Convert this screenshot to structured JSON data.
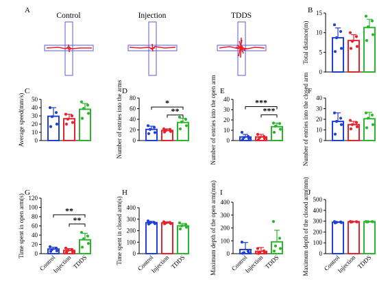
{
  "figure": {
    "panel_letters": [
      "A",
      "B",
      "C",
      "D",
      "E",
      "F",
      "G",
      "H",
      "I",
      "J"
    ],
    "trajectory_titles": [
      "Control",
      "Injection",
      "TDDS"
    ]
  },
  "colors": {
    "control": "#1f3fd6",
    "injection": "#e8212b",
    "tdds": "#2bb52b",
    "track": "#e8212b",
    "maze": "#4a4ad6"
  },
  "chart_data": [
    {
      "panel": "B",
      "type": "bar",
      "categories": [
        "Control",
        "Injection",
        "TDDS"
      ],
      "values": [
        8.7,
        8.0,
        11.3
      ],
      "errors": [
        2.5,
        1.5,
        2.1
      ],
      "points": [
        [
          12.0,
          10.3,
          8.7,
          6.0,
          5.2
        ],
        [
          10.0,
          9.0,
          7.8,
          6.5,
          6.0
        ],
        [
          14.2,
          13.0,
          11.5,
          9.5,
          8.0
        ]
      ],
      "ylabel": "Total distance(m)",
      "ylim": [
        0,
        15
      ],
      "ticks": [
        0,
        5,
        10,
        15
      ],
      "show_xlabels": false,
      "significance": []
    },
    {
      "panel": "C",
      "type": "bar",
      "categories": [
        "Control",
        "Injection",
        "TDDS"
      ],
      "values": [
        29.5,
        26.5,
        38.0
      ],
      "errors": [
        10.5,
        5.5,
        7.0
      ],
      "points": [
        [
          40.0,
          34.0,
          29.0,
          20.0,
          17.0
        ],
        [
          32.0,
          30.0,
          26.0,
          22.0,
          20.0
        ],
        [
          47.0,
          43.0,
          39.0,
          33.0,
          27.0
        ]
      ],
      "ylabel": "Average speed(mm/s)",
      "ylim": [
        0,
        50
      ],
      "ticks": [
        0,
        10,
        20,
        30,
        40,
        50
      ],
      "show_xlabels": false,
      "significance": []
    },
    {
      "panel": "D",
      "type": "bar",
      "categories": [
        "Control",
        "Injection",
        "TDDS"
      ],
      "values": [
        21.0,
        19.0,
        34.0
      ],
      "errors": [
        6.0,
        3.0,
        8.0
      ],
      "points": [
        [
          28.0,
          25.0,
          21.0,
          15.0,
          13.0
        ],
        [
          22.0,
          21.0,
          19.0,
          17.0,
          16.0
        ],
        [
          44.0,
          40.0,
          35.0,
          28.0,
          22.0
        ]
      ],
      "ylabel": "Number of entries into the arms",
      "ylim": [
        0,
        80
      ],
      "ticks": [
        0,
        20,
        40,
        60,
        80
      ],
      "show_xlabels": false,
      "significance": [
        {
          "from": 0,
          "to": 2,
          "label": "*",
          "y": 63
        },
        {
          "from": 1,
          "to": 2,
          "label": "**",
          "y": 48
        }
      ]
    },
    {
      "panel": "E",
      "type": "bar",
      "categories": [
        "Control",
        "Injection",
        "TDDS"
      ],
      "values": [
        3.5,
        3.5,
        13.5
      ],
      "errors": [
        2.5,
        2.5,
        3.5
      ],
      "points": [
        [
          8.0,
          4.0,
          3.0,
          2.0,
          1.0
        ],
        [
          6.0,
          4.0,
          3.0,
          2.0,
          1.0
        ],
        [
          17.0,
          16.5,
          14.0,
          11.0,
          8.0
        ]
      ],
      "ylabel": "Number of entries into the open arm",
      "ylim": [
        0,
        40
      ],
      "ticks": [
        0,
        10,
        20,
        30,
        40
      ],
      "show_xlabels": false,
      "significance": [
        {
          "from": 0,
          "to": 2,
          "label": "***",
          "y": 33
        },
        {
          "from": 1,
          "to": 2,
          "label": "***",
          "y": 25
        }
      ]
    },
    {
      "panel": "F",
      "type": "bar",
      "categories": [
        "Control",
        "Injection",
        "TDDS"
      ],
      "values": [
        18.0,
        15.0,
        20.5
      ],
      "errors": [
        8.0,
        3.0,
        6.0
      ],
      "points": [
        [
          26.0,
          21.0,
          18.0,
          15.0,
          6.0
        ],
        [
          19.0,
          17.0,
          15.0,
          13.0,
          11.0
        ],
        [
          26.0,
          24.0,
          21.0,
          15.0,
          12.0
        ]
      ],
      "ylabel": "Number of entries into the closed arm",
      "ylim": [
        0,
        40
      ],
      "ticks": [
        0,
        10,
        20,
        30,
        40
      ],
      "show_xlabels": false,
      "significance": []
    },
    {
      "panel": "G",
      "type": "bar",
      "categories": [
        "Control",
        "Injection",
        "TDDS"
      ],
      "values": [
        10.0,
        7.0,
        30.0
      ],
      "errors": [
        4.0,
        4.0,
        14.0
      ],
      "points": [
        [
          15.0,
          12.0,
          9.0,
          6.0,
          5.0
        ],
        [
          12.0,
          9.0,
          7.0,
          4.0,
          3.0
        ],
        [
          46.0,
          38.0,
          32.0,
          22.0,
          14.0
        ]
      ],
      "ylabel": "Time spent in open arm(s)",
      "ylim": [
        0,
        120
      ],
      "ticks": [
        0,
        20,
        40,
        60,
        80,
        100,
        120
      ],
      "show_xlabels": true,
      "significance": [
        {
          "from": 0,
          "to": 2,
          "label": "**",
          "y": 84
        },
        {
          "from": 1,
          "to": 2,
          "label": "**",
          "y": 64
        }
      ]
    },
    {
      "panel": "H",
      "type": "bar",
      "categories": [
        "Control",
        "Injection",
        "TDDS"
      ],
      "values": [
        270,
        268,
        242
      ],
      "errors": [
        12,
        9,
        20
      ],
      "points": [
        [
          285,
          272,
          268,
          262,
          258
        ],
        [
          278,
          272,
          268,
          262,
          260
        ],
        [
          268,
          255,
          242,
          230,
          215
        ]
      ],
      "ylabel": "Time spent in closed arm(s)",
      "ylim": [
        0,
        400
      ],
      "ticks": [
        0,
        100,
        200,
        300,
        400
      ],
      "show_xlabels": true,
      "significance": []
    },
    {
      "panel": "I",
      "type": "bar",
      "categories": [
        "Control",
        "Injection",
        "TDDS"
      ],
      "values": [
        32,
        18,
        92
      ],
      "errors": [
        55,
        30,
        90
      ],
      "points": [
        [
          90,
          20,
          8,
          5,
          3
        ],
        [
          40,
          22,
          10,
          5,
          2
        ],
        [
          250,
          120,
          60,
          40,
          20
        ]
      ],
      "ylabel": "Maximum depth of the open arm(mm)",
      "ylim": [
        0,
        400
      ],
      "ticks": [
        0,
        100,
        200,
        300,
        400
      ],
      "show_xlabels": true,
      "significance": []
    },
    {
      "panel": "J",
      "type": "bar",
      "categories": [
        "Control",
        "Injection",
        "TDDS"
      ],
      "values": [
        290,
        295,
        295
      ],
      "errors": [
        5,
        3,
        3
      ],
      "points": [
        [
          296,
          293,
          290,
          287,
          284
        ],
        [
          297,
          295,
          294,
          293,
          292
        ],
        [
          297,
          296,
          295,
          294,
          293
        ]
      ],
      "ylabel": "Maximum depth of the closed arm(mm)",
      "ylim": [
        0,
        500
      ],
      "ticks": [
        0,
        100,
        200,
        300,
        400,
        500
      ],
      "show_xlabels": true,
      "significance": []
    }
  ]
}
